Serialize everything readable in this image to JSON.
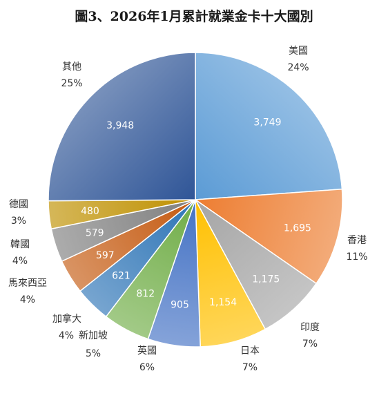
{
  "chart_data": {
    "type": "pie",
    "title": "圖3、2026年1月累計就業金卡十大國別",
    "slices": [
      {
        "label": "美國",
        "value": 3749,
        "value_label": "3,749",
        "percent_label": "24%",
        "color": "#5b9bd5"
      },
      {
        "label": "香港",
        "value": 1695,
        "value_label": "1,695",
        "percent_label": "11%",
        "color": "#ed7d31"
      },
      {
        "label": "印度",
        "value": 1175,
        "value_label": "1,175",
        "percent_label": "7%",
        "color": "#a5a5a5"
      },
      {
        "label": "日本",
        "value": 1154,
        "value_label": "1,154",
        "percent_label": "7%",
        "color": "#ffc000"
      },
      {
        "label": "英國",
        "value": 905,
        "value_label": "905",
        "percent_label": "6%",
        "color": "#4472c4"
      },
      {
        "label": "新加坡",
        "value": 812,
        "value_label": "812",
        "percent_label": "5%",
        "color": "#70ad47"
      },
      {
        "label": "加拿大",
        "value": 621,
        "value_label": "621",
        "percent_label": "4%",
        "color": "#2e75b6"
      },
      {
        "label": "馬來西亞",
        "value": 597,
        "value_label": "597",
        "percent_label": "4%",
        "color": "#c55a11"
      },
      {
        "label": "韓國",
        "value": 579,
        "value_label": "579",
        "percent_label": "4%",
        "color": "#7f7f7f"
      },
      {
        "label": "德國",
        "value": 480,
        "value_label": "480",
        "percent_label": "3%",
        "color": "#bf9000"
      },
      {
        "label": "其他",
        "value": 3948,
        "value_label": "3,948",
        "percent_label": "25%",
        "color": "#2f5597"
      }
    ]
  }
}
